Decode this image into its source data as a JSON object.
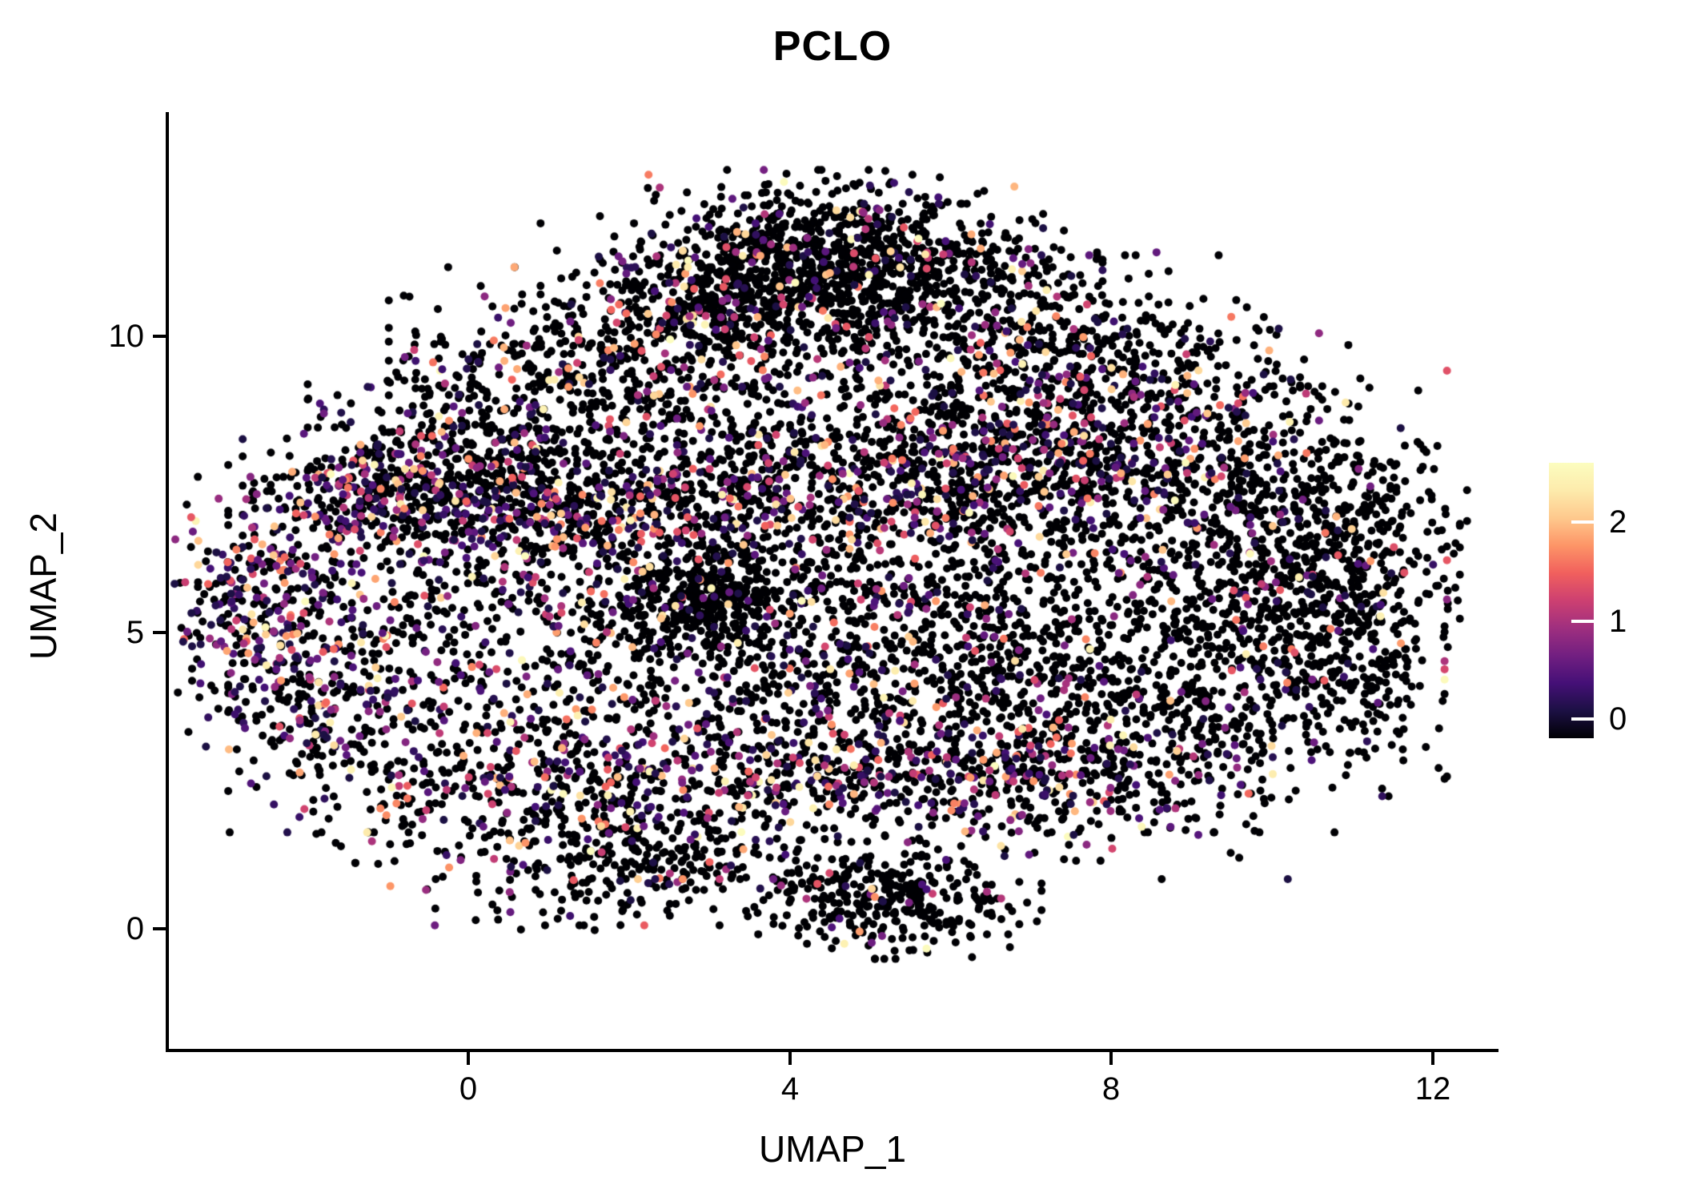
{
  "title": "PCLO",
  "axes": {
    "x_label": "UMAP_1",
    "y_label": "UMAP_2",
    "x_ticks": [
      "0",
      "4",
      "8",
      "12"
    ],
    "y_ticks": [
      "10",
      "5",
      "0"
    ]
  },
  "colorbar": {
    "ticks": [
      "2",
      "1",
      "0"
    ]
  },
  "chart_data": {
    "type": "scatter",
    "title": "PCLO",
    "xlabel": "UMAP_1",
    "ylabel": "UMAP_2",
    "xlim": [
      -3.8,
      12.9
    ],
    "ylim": [
      -2.1,
      13.8
    ],
    "x_tick_values": [
      0,
      4,
      8,
      12
    ],
    "y_tick_values": [
      0,
      5,
      10
    ],
    "grid": false,
    "legend_position": "right",
    "point_color_zero": "#000004",
    "colorbar": {
      "label_values": [
        0,
        1,
        2
      ],
      "vmin": 0,
      "vmax": 2.6,
      "magma_stops": [
        [
          0.0,
          "#000004"
        ],
        [
          0.1,
          "#1c1044"
        ],
        [
          0.2,
          "#451077"
        ],
        [
          0.3,
          "#721f81"
        ],
        [
          0.4,
          "#9f2f7f"
        ],
        [
          0.5,
          "#cd4071"
        ],
        [
          0.6,
          "#f1605d"
        ],
        [
          0.7,
          "#fd9567"
        ],
        [
          0.8,
          "#fec98d"
        ],
        [
          0.9,
          "#fdebac"
        ],
        [
          1.0,
          "#fcfdbf"
        ]
      ]
    },
    "point_radius_px": 5,
    "seed": 42,
    "clusters": [
      {
        "cx": 4.4,
        "cy": 11.4,
        "sx": 1.2,
        "sy": 0.6,
        "n": 700,
        "frac_expressing": 0.1
      },
      {
        "cx": 3.2,
        "cy": 10.5,
        "sx": 1.0,
        "sy": 0.6,
        "n": 400,
        "frac_expressing": 0.15
      },
      {
        "cx": 5.6,
        "cy": 10.6,
        "sx": 1.0,
        "sy": 0.7,
        "n": 400,
        "frac_expressing": 0.12
      },
      {
        "cx": 2.0,
        "cy": 9.3,
        "sx": 1.3,
        "sy": 0.8,
        "n": 500,
        "frac_expressing": 0.18
      },
      {
        "cx": 0.3,
        "cy": 8.0,
        "sx": 1.0,
        "sy": 0.8,
        "n": 350,
        "frac_expressing": 0.22
      },
      {
        "cx": -1.2,
        "cy": 7.3,
        "sx": 0.7,
        "sy": 0.6,
        "n": 300,
        "frac_expressing": 0.4
      },
      {
        "cx": 1.3,
        "cy": 7.1,
        "sx": 1.5,
        "sy": 0.5,
        "n": 450,
        "frac_expressing": 0.45
      },
      {
        "cx": 4.2,
        "cy": 7.6,
        "sx": 1.5,
        "sy": 0.8,
        "n": 450,
        "frac_expressing": 0.25
      },
      {
        "cx": 6.6,
        "cy": 7.9,
        "sx": 1.3,
        "sy": 0.8,
        "n": 550,
        "frac_expressing": 0.35
      },
      {
        "cx": 8.8,
        "cy": 7.8,
        "sx": 1.2,
        "sy": 1.0,
        "n": 500,
        "frac_expressing": 0.25
      },
      {
        "cx": 7.6,
        "cy": 9.5,
        "sx": 1.2,
        "sy": 0.8,
        "n": 400,
        "frac_expressing": 0.18
      },
      {
        "cx": 10.6,
        "cy": 6.6,
        "sx": 0.8,
        "sy": 1.1,
        "n": 350,
        "frac_expressing": 0.08
      },
      {
        "cx": -2.6,
        "cy": 5.3,
        "sx": 0.5,
        "sy": 1.0,
        "n": 300,
        "frac_expressing": 0.5
      },
      {
        "cx": -1.6,
        "cy": 3.9,
        "sx": 0.8,
        "sy": 1.0,
        "n": 300,
        "frac_expressing": 0.3
      },
      {
        "cx": 0.7,
        "cy": 5.4,
        "sx": 1.2,
        "sy": 1.0,
        "n": 400,
        "frac_expressing": 0.3
      },
      {
        "cx": 2.9,
        "cy": 5.6,
        "sx": 0.5,
        "sy": 0.5,
        "n": 280,
        "frac_expressing": 0.06
      },
      {
        "cx": 4.2,
        "cy": 4.7,
        "sx": 1.4,
        "sy": 1.1,
        "n": 480,
        "frac_expressing": 0.15
      },
      {
        "cx": 6.6,
        "cy": 4.6,
        "sx": 1.4,
        "sy": 1.2,
        "n": 520,
        "frac_expressing": 0.2
      },
      {
        "cx": 9.4,
        "cy": 3.9,
        "sx": 1.2,
        "sy": 1.0,
        "n": 420,
        "frac_expressing": 0.1
      },
      {
        "cx": 3.4,
        "cy": 2.6,
        "sx": 2.0,
        "sy": 0.5,
        "n": 480,
        "frac_expressing": 0.42
      },
      {
        "cx": 6.8,
        "cy": 2.5,
        "sx": 1.4,
        "sy": 0.6,
        "n": 400,
        "frac_expressing": 0.28
      },
      {
        "cx": 0.6,
        "cy": 2.1,
        "sx": 1.1,
        "sy": 0.9,
        "n": 320,
        "frac_expressing": 0.2
      },
      {
        "cx": 2.4,
        "cy": 1.1,
        "sx": 1.0,
        "sy": 0.5,
        "n": 240,
        "frac_expressing": 0.12
      },
      {
        "cx": 5.3,
        "cy": 0.5,
        "sx": 0.8,
        "sy": 0.45,
        "n": 330,
        "frac_expressing": 0.06
      },
      {
        "cx": 4.6,
        "cy": 6.1,
        "sx": 3.3,
        "sy": 2.3,
        "n": 650,
        "frac_expressing": 0.15
      },
      {
        "cx": 9.9,
        "cy": 5.6,
        "sx": 1.0,
        "sy": 1.0,
        "n": 300,
        "frac_expressing": 0.1
      },
      {
        "cx": 11.2,
        "cy": 5.2,
        "sx": 0.5,
        "sy": 1.3,
        "n": 200,
        "frac_expressing": 0.06
      }
    ]
  }
}
